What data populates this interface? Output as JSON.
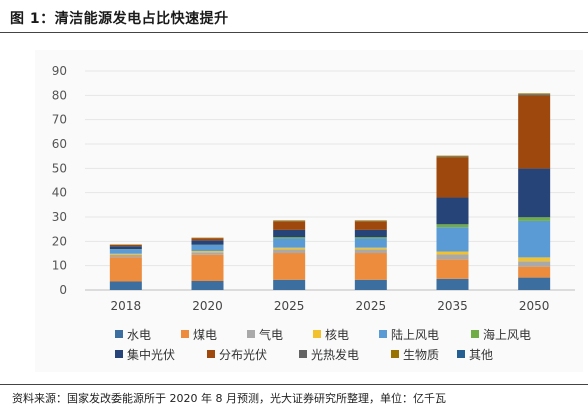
{
  "figure": {
    "title": "图 1：清洁能源发电占比快速提升",
    "source": "资料来源：国家发改委能源所于 2020 年 8 月预测，光大证券研究所整理，单位：亿千瓦"
  },
  "chart_data": {
    "type": "bar",
    "stacked": true,
    "title": "",
    "xlabel": "",
    "ylabel": "",
    "ylim": [
      0,
      90
    ],
    "yticks": [
      0,
      10,
      20,
      30,
      40,
      50,
      60,
      70,
      80,
      90
    ],
    "grid": true,
    "legend_position": "bottom",
    "categories": [
      "2018",
      "2020",
      "2025",
      "2025",
      "2035",
      "2050"
    ],
    "series": [
      {
        "name": "水电",
        "color": "#3c6e9f",
        "values": [
          3.5,
          3.7,
          4.2,
          4.2,
          4.6,
          5.1
        ]
      },
      {
        "name": "煤电",
        "color": "#ec8c3c",
        "values": [
          10.0,
          10.8,
          11.0,
          11.0,
          8.0,
          4.5
        ]
      },
      {
        "name": "气电",
        "color": "#a9a9a9",
        "values": [
          0.9,
          1.0,
          1.5,
          1.5,
          2.0,
          2.2
        ]
      },
      {
        "name": "核电",
        "color": "#f2c12e",
        "values": [
          0.5,
          0.5,
          0.7,
          0.7,
          1.2,
          1.6
        ]
      },
      {
        "name": "陆上风电",
        "color": "#5b9bd5",
        "values": [
          1.8,
          2.5,
          3.8,
          3.8,
          10.0,
          15.0
        ]
      },
      {
        "name": "海上风电",
        "color": "#70ad47",
        "values": [
          0.1,
          0.1,
          0.5,
          0.5,
          1.2,
          1.5
        ]
      },
      {
        "name": "集中光伏",
        "color": "#264478",
        "values": [
          1.2,
          1.8,
          3.0,
          3.0,
          11.0,
          20.0
        ]
      },
      {
        "name": "分布光伏",
        "color": "#9e480e",
        "values": [
          0.5,
          0.9,
          3.5,
          3.5,
          16.5,
          30.0
        ]
      },
      {
        "name": "光热发电",
        "color": "#636363",
        "values": [
          0.0,
          0.0,
          0.1,
          0.1,
          0.3,
          0.5
        ]
      },
      {
        "name": "生物质",
        "color": "#997300",
        "values": [
          0.2,
          0.2,
          0.3,
          0.3,
          0.4,
          0.4
        ]
      },
      {
        "name": "其他",
        "color": "#255e91",
        "values": [
          0.0,
          0.0,
          0.0,
          0.0,
          0.0,
          0.0
        ]
      }
    ]
  }
}
